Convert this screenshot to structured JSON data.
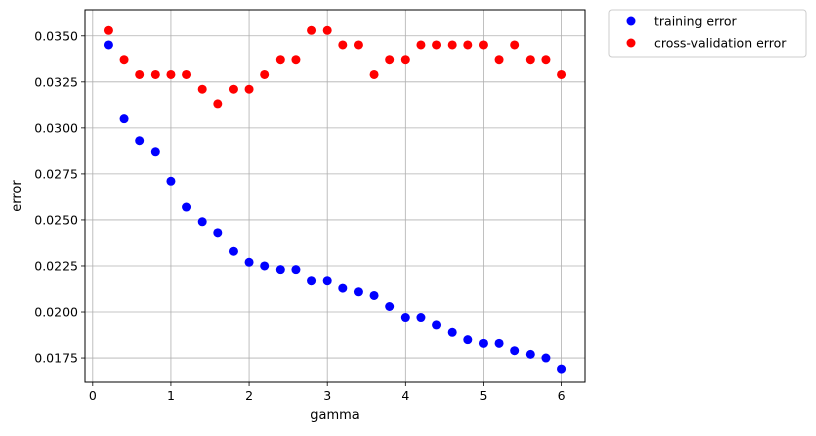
{
  "chart_data": {
    "type": "scatter",
    "xlabel": "gamma",
    "ylabel": "error",
    "xlim": [
      -0.1,
      6.3
    ],
    "ylim": [
      0.0162,
      0.0364
    ],
    "grid": true,
    "legend_position": "outside-top-right",
    "xticks": [
      0,
      1,
      2,
      3,
      4,
      5,
      6
    ],
    "xtick_labels": [
      "0",
      "1",
      "2",
      "3",
      "4",
      "5",
      "6"
    ],
    "yticks": [
      0.0175,
      0.02,
      0.0225,
      0.025,
      0.0275,
      0.03,
      0.0325,
      0.035
    ],
    "ytick_labels": [
      "0.0175",
      "0.0200",
      "0.0225",
      "0.0250",
      "0.0275",
      "0.0300",
      "0.0325",
      "0.0350"
    ],
    "x": [
      0.2,
      0.4,
      0.6,
      0.8,
      1.0,
      1.2,
      1.4,
      1.6,
      1.8,
      2.0,
      2.2,
      2.4,
      2.6,
      2.8,
      3.0,
      3.2,
      3.4,
      3.6,
      3.8,
      4.0,
      4.2,
      4.4,
      4.6,
      4.8,
      5.0,
      5.2,
      5.4,
      5.6,
      5.8,
      6.0
    ],
    "series": [
      {
        "name": "training error",
        "color": "#0000ff",
        "values": [
          0.0345,
          0.0305,
          0.0293,
          0.0287,
          0.0271,
          0.0257,
          0.0249,
          0.0243,
          0.0233,
          0.0227,
          0.0225,
          0.0223,
          0.0223,
          0.0217,
          0.0217,
          0.0213,
          0.0211,
          0.0209,
          0.0203,
          0.0197,
          0.0197,
          0.0193,
          0.0189,
          0.0185,
          0.0183,
          0.0183,
          0.0179,
          0.0177,
          0.0175,
          0.0169
        ]
      },
      {
        "name": "cross-validation error",
        "color": "#ff0000",
        "values": [
          0.0353,
          0.0337,
          0.0329,
          0.0329,
          0.0329,
          0.0329,
          0.0321,
          0.0313,
          0.0321,
          0.0321,
          0.0329,
          0.0337,
          0.0337,
          0.0353,
          0.0353,
          0.0345,
          0.0345,
          0.0329,
          0.0337,
          0.0337,
          0.0345,
          0.0345,
          0.0345,
          0.0345,
          0.0345,
          0.0337,
          0.0345,
          0.0337,
          0.0337,
          0.0329
        ]
      }
    ]
  }
}
